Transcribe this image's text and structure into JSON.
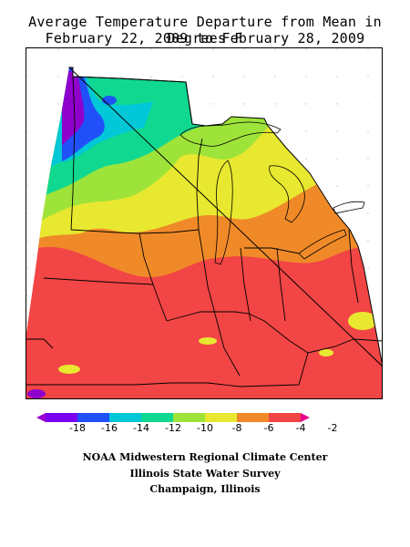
{
  "title": {
    "line1": "Average Temperature Departure from Mean in Degrees F",
    "line2": "February 22, 2009 to February 28, 2009"
  },
  "legend": {
    "labels": [
      "-18",
      "-16",
      "-14",
      "-12",
      "-10",
      "-8",
      "-6",
      "-4",
      "-2"
    ],
    "colors": [
      "#9d00d0",
      "#7a00f0",
      "#2050f8",
      "#00c8d8",
      "#10d890",
      "#9ee33a",
      "#e8e830",
      "#f08a28",
      "#f24545",
      "#e8008a"
    ]
  },
  "credits": {
    "line1": "NOAA Midwestern Regional Climate Center",
    "line2": "Illinois State Water Survey",
    "line3": "Champaign, Illinois"
  },
  "map_colors": {
    "purple": "#9000cc",
    "blue": "#2050f8",
    "cyan": "#00c8d8",
    "green": "#10d890",
    "lightgreen": "#9ee33a",
    "yellow": "#e8e830",
    "orange": "#f08a28",
    "red": "#f24545"
  }
}
